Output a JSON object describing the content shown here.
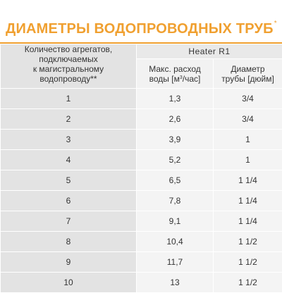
{
  "title": {
    "text": "ДИАМЕТРЫ ВОДОПРОВОДНЫХ ТРУБ",
    "footnote_mark": "*"
  },
  "table": {
    "col1_header_lines": [
      "Количество агрегатов,",
      "подключаемых",
      "к магистральному",
      "водопроводу**"
    ],
    "model_header": "Heater R1",
    "flow_header": {
      "line1": "Макс. расход",
      "line2_prefix": "воды [м",
      "line2_sup": "3",
      "line2_suffix": "/час]"
    },
    "diameter_header": {
      "line1": "Диаметр",
      "line2": "трубы [дюйм]"
    },
    "rows": [
      {
        "count": "1",
        "flow": "1,3",
        "diameter": "3/4"
      },
      {
        "count": "2",
        "flow": "2,6",
        "diameter": "3/4"
      },
      {
        "count": "3",
        "flow": "3,9",
        "diameter": "1"
      },
      {
        "count": "4",
        "flow": "5,2",
        "diameter": "1"
      },
      {
        "count": "5",
        "flow": "6,5",
        "diameter": "1 1/4"
      },
      {
        "count": "6",
        "flow": "7,8",
        "diameter": "1 1/4"
      },
      {
        "count": "7",
        "flow": "9,1",
        "diameter": "1 1/4"
      },
      {
        "count": "8",
        "flow": "10,4",
        "diameter": "1 1/2"
      },
      {
        "count": "9",
        "flow": "11,7",
        "diameter": "1 1/2"
      },
      {
        "count": "10",
        "flow": "13",
        "diameter": "1 1/2"
      }
    ]
  },
  "colors": {
    "accent": "#f0a030",
    "header_bg": "#e3e3e3",
    "cell_bg": "#f4f4f4",
    "text": "#333333"
  }
}
